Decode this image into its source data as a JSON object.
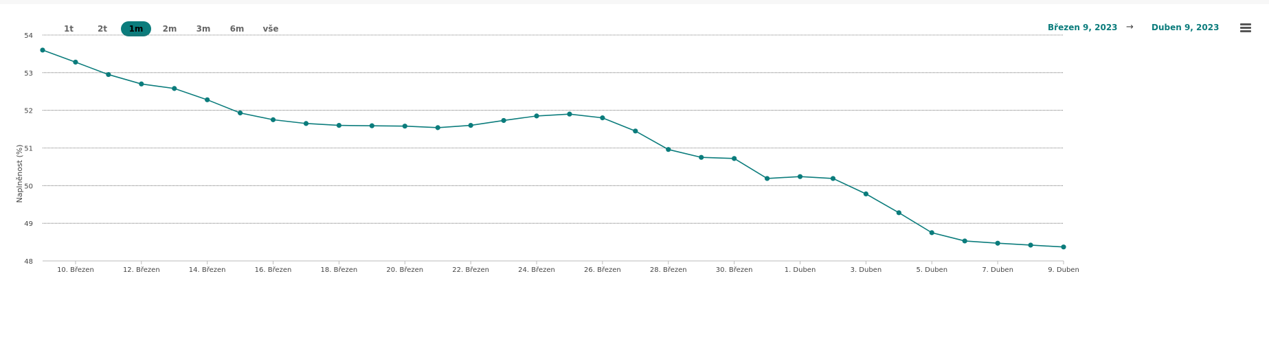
{
  "range_selector": {
    "buttons": [
      "1t",
      "2t",
      "1m",
      "2m",
      "3m",
      "6m",
      "vše"
    ],
    "active": "1m"
  },
  "date_range": {
    "start": "Březen 9, 2023",
    "arrow": "→",
    "end": "Duben 9, 2023"
  },
  "colors": {
    "accent": "#0b7c7c",
    "series": "#0b7c7c",
    "grid": "#555555"
  },
  "icons": {
    "menu": "hamburger-menu-icon"
  },
  "chart_data": {
    "type": "line",
    "ylabel": "Naplněnost (%)",
    "xlabel": "",
    "ylim": [
      48,
      54
    ],
    "yticks": [
      48,
      49,
      50,
      51,
      52,
      53,
      54
    ],
    "x": [
      "9. Březen",
      "10. Březen",
      "11. Březen",
      "12. Březen",
      "13. Březen",
      "14. Březen",
      "15. Březen",
      "16. Březen",
      "17. Březen",
      "18. Březen",
      "19. Březen",
      "20. Březen",
      "21. Březen",
      "22. Březen",
      "23. Březen",
      "24. Březen",
      "25. Březen",
      "26. Březen",
      "27. Březen",
      "28. Březen",
      "29. Březen",
      "30. Březen",
      "31. Březen",
      "1. Duben",
      "2. Duben",
      "3. Duben",
      "4. Duben",
      "5. Duben",
      "6. Duben",
      "7. Duben",
      "8. Duben",
      "9. Duben"
    ],
    "xtick_labels": [
      "10. Březen",
      "12. Březen",
      "14. Březen",
      "16. Březen",
      "18. Březen",
      "20. Březen",
      "22. Březen",
      "24. Březen",
      "26. Březen",
      "28. Březen",
      "30. Březen",
      "1. Duben",
      "3. Duben",
      "5. Duben",
      "7. Duben",
      "9. Duben"
    ],
    "xtick_indices": [
      1,
      3,
      5,
      7,
      9,
      11,
      13,
      15,
      17,
      19,
      21,
      23,
      25,
      27,
      29,
      31
    ],
    "series": [
      {
        "values": [
          53.6,
          53.28,
          52.95,
          52.7,
          52.58,
          52.28,
          51.93,
          51.75,
          51.65,
          51.6,
          51.59,
          51.58,
          51.54,
          51.6,
          51.73,
          51.85,
          51.9,
          51.8,
          51.45,
          50.96,
          50.75,
          50.72,
          50.19,
          50.24,
          50.19,
          49.78,
          49.28,
          48.75,
          48.53,
          48.47,
          48.42,
          48.37
        ]
      }
    ],
    "grid": true,
    "legend": "none"
  }
}
